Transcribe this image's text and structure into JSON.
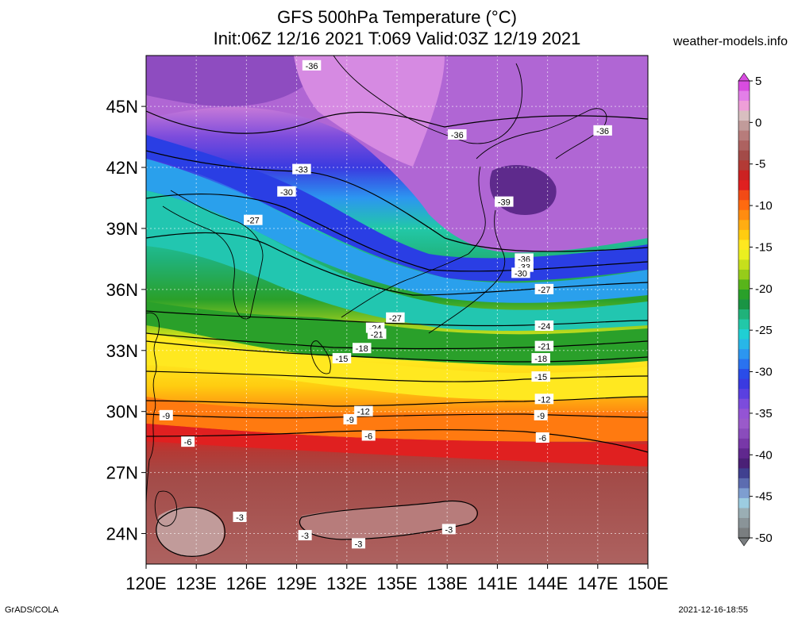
{
  "title": {
    "line1": "GFS 500hPa Temperature (°C)",
    "line2": "Init:06Z 12/16 2021 T:069 Valid:03Z 12/19 2021"
  },
  "site": "weather-models.info",
  "footer": {
    "left": "GrADS/COLA",
    "right": "2021-12-16-18:55"
  },
  "chart_data": {
    "type": "heatmap",
    "map_extent": {
      "lon": [
        120,
        150
      ],
      "lat": [
        22.5,
        47.5
      ]
    },
    "x_ticks": [
      "120E",
      "123E",
      "126E",
      "129E",
      "132E",
      "135E",
      "138E",
      "141E",
      "144E",
      "147E",
      "150E"
    ],
    "y_ticks": [
      "45N",
      "42N",
      "39N",
      "36N",
      "33N",
      "30N",
      "27N",
      "24N"
    ],
    "x_tick_values": [
      120,
      123,
      126,
      129,
      132,
      135,
      138,
      141,
      144,
      147,
      150
    ],
    "y_tick_values": [
      45,
      42,
      39,
      36,
      33,
      30,
      27,
      24
    ],
    "grid": true,
    "colorbar": {
      "labels": [
        "5",
        "0",
        "-5",
        "-10",
        "-15",
        "-20",
        "-25",
        "-30",
        "-35",
        "-40",
        "-45",
        "-50"
      ],
      "values": [
        5,
        0,
        -5,
        -10,
        -15,
        -20,
        -25,
        -30,
        -35,
        -40,
        -45,
        -50
      ],
      "colors": [
        "#d84ce0",
        "#e37fe8",
        "#ee9fd8",
        "#d8bfc0",
        "#c19b9a",
        "#b77c7b",
        "#ad6260",
        "#a34b48",
        "#b33a35",
        "#cc2222",
        "#e02020",
        "#f24a16",
        "#ff6a10",
        "#ff8c10",
        "#ffad12",
        "#ffcc10",
        "#ffe820",
        "#eaf020",
        "#c6df1c",
        "#96cc1a",
        "#58b41a",
        "#2aa02a",
        "#1a9444",
        "#20b27a",
        "#22c8a8",
        "#20cfd4",
        "#28b6e8",
        "#2c96f0",
        "#2a72f0",
        "#2a4ce8",
        "#3a3ae0",
        "#5a40e0",
        "#7c4cdc",
        "#9454d4",
        "#9a5aca",
        "#8a4cbc",
        "#7838a8",
        "#60288e",
        "#4a2076",
        "#404090",
        "#5c6cb0",
        "#7e9ed0",
        "#9ccce0",
        "#9aaeb4",
        "#8a9498",
        "#7a7e80"
      ]
    },
    "contour_labels": [
      {
        "text": "-36",
        "lon": 129.9,
        "lat": 47.0
      },
      {
        "text": "-36",
        "lon": 138.6,
        "lat": 43.6
      },
      {
        "text": "-36",
        "lon": 147.3,
        "lat": 43.8
      },
      {
        "text": "-33",
        "lon": 129.3,
        "lat": 41.9
      },
      {
        "text": "-30",
        "lon": 128.4,
        "lat": 40.8
      },
      {
        "text": "-27",
        "lon": 126.4,
        "lat": 39.4
      },
      {
        "text": "-39",
        "lon": 141.4,
        "lat": 40.3
      },
      {
        "text": "-36",
        "lon": 142.6,
        "lat": 37.5
      },
      {
        "text": "-33",
        "lon": 142.6,
        "lat": 37.1
      },
      {
        "text": "-30",
        "lon": 142.4,
        "lat": 36.8
      },
      {
        "text": "-27",
        "lon": 143.8,
        "lat": 36.0
      },
      {
        "text": "-27",
        "lon": 134.9,
        "lat": 34.6
      },
      {
        "text": "-24",
        "lon": 133.7,
        "lat": 34.1
      },
      {
        "text": "-21",
        "lon": 133.8,
        "lat": 33.8
      },
      {
        "text": "-24",
        "lon": 143.8,
        "lat": 34.2
      },
      {
        "text": "-21",
        "lon": 143.8,
        "lat": 33.2
      },
      {
        "text": "-18",
        "lon": 132.9,
        "lat": 33.1
      },
      {
        "text": "-18",
        "lon": 143.6,
        "lat": 32.6
      },
      {
        "text": "-15",
        "lon": 131.7,
        "lat": 32.6
      },
      {
        "text": "-15",
        "lon": 143.6,
        "lat": 31.7
      },
      {
        "text": "-12",
        "lon": 143.8,
        "lat": 30.6
      },
      {
        "text": "-12",
        "lon": 133.0,
        "lat": 30.0
      },
      {
        "text": "-9",
        "lon": 121.2,
        "lat": 29.8
      },
      {
        "text": "-9",
        "lon": 132.2,
        "lat": 29.6
      },
      {
        "text": "-9",
        "lon": 143.6,
        "lat": 29.8
      },
      {
        "text": "-6",
        "lon": 122.5,
        "lat": 28.5
      },
      {
        "text": "-6",
        "lon": 133.3,
        "lat": 28.8
      },
      {
        "text": "-6",
        "lon": 143.7,
        "lat": 28.7
      },
      {
        "text": "-3",
        "lon": 125.6,
        "lat": 24.8
      },
      {
        "text": "-3",
        "lon": 129.5,
        "lat": 23.9
      },
      {
        "text": "-3",
        "lon": 132.7,
        "lat": 23.5
      },
      {
        "text": "-3",
        "lon": 138.1,
        "lat": 24.2
      }
    ]
  }
}
